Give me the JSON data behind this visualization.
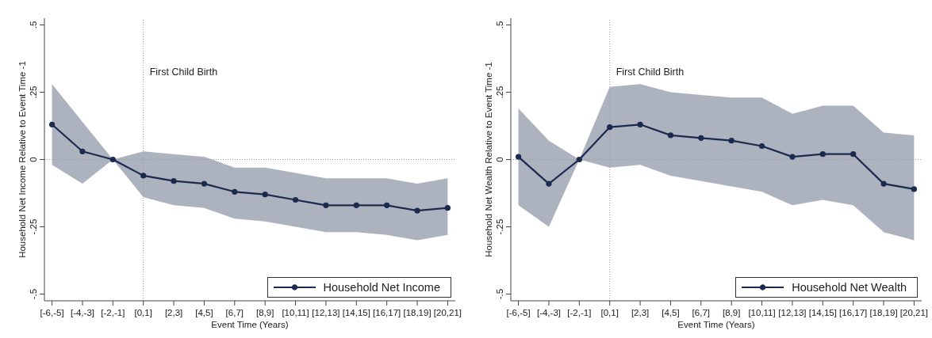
{
  "chart_data": [
    {
      "type": "line",
      "xlabel": "Event Time (Years)",
      "ylabel": "Household Net Income Relative to Event Time -1",
      "categories": [
        "[-6,-5]",
        "[-4,-3]",
        "[-2,-1]",
        "[0,1]",
        "[2,3]",
        "[4,5]",
        "[6,7]",
        "[8,9]",
        "[10,11]",
        "[12,13]",
        "[14,15]",
        "[16,17]",
        "[18,19]",
        "[20,21]"
      ],
      "ylim": [
        -0.525,
        0.525
      ],
      "yticks": [
        {
          "value": -0.5,
          "label": "-.5"
        },
        {
          "value": -0.25,
          "label": "-.25"
        },
        0,
        {
          "value": 0.25,
          "label": ".25"
        },
        {
          "value": 0.5,
          "label": ".5"
        }
      ],
      "series": [
        {
          "name": "Household Net Income",
          "color": "#1b2a4e",
          "values": [
            0.13,
            0.03,
            0,
            -0.06,
            -0.08,
            -0.09,
            -0.12,
            -0.13,
            -0.15,
            -0.17,
            -0.17,
            -0.17,
            -0.19,
            -0.18
          ],
          "lower": [
            -0.02,
            -0.09,
            0,
            -0.14,
            -0.17,
            -0.18,
            -0.22,
            -0.23,
            -0.25,
            -0.27,
            -0.27,
            -0.28,
            -0.3,
            -0.28
          ],
          "upper": [
            0.28,
            0.14,
            0,
            0.03,
            0.02,
            0.01,
            -0.03,
            -0.03,
            -0.05,
            -0.07,
            -0.07,
            -0.07,
            -0.09,
            -0.07
          ]
        }
      ],
      "ref_lines": [
        {
          "axis": "x",
          "value": "[0,1]",
          "label": "First Child Birth",
          "color": "#999999",
          "line_style": "dotted"
        },
        {
          "axis": "y",
          "value": 0,
          "color": "#999999",
          "line_style": "dotted"
        }
      ],
      "legend": "bottom right",
      "marker": "circle"
    },
    {
      "type": "line",
      "xlabel": "Event Time (Years)",
      "ylabel": "Household Net Wealth Relative to Event Time -1",
      "categories": [
        "[-6,-5]",
        "[-4,-3]",
        "[-2,-1]",
        "[0,1]",
        "[2,3]",
        "[4,5]",
        "[6,7]",
        "[8,9]",
        "[10,11]",
        "[12,13]",
        "[14,15]",
        "[16,17]",
        "[18,19]",
        "[20,21]"
      ],
      "ylim": [
        -0.525,
        0.525
      ],
      "yticks": [
        {
          "value": -0.5,
          "label": "-.5"
        },
        {
          "value": -0.25,
          "label": "-.25"
        },
        0,
        {
          "value": 0.25,
          "label": ".25"
        },
        {
          "value": 0.5,
          "label": ".5"
        }
      ],
      "series": [
        {
          "name": "Household Net Wealth",
          "color": "#1b2a4e",
          "values": [
            0.01,
            -0.09,
            0,
            0.12,
            0.13,
            0.09,
            0.08,
            0.07,
            0.05,
            0.01,
            0.02,
            0.02,
            -0.09,
            -0.11
          ],
          "lower": [
            -0.17,
            -0.25,
            0,
            -0.03,
            -0.02,
            -0.06,
            -0.08,
            -0.1,
            -0.12,
            -0.17,
            -0.15,
            -0.17,
            -0.27,
            -0.3
          ],
          "upper": [
            0.19,
            0.07,
            0,
            0.27,
            0.28,
            0.25,
            0.24,
            0.23,
            0.23,
            0.17,
            0.2,
            0.2,
            0.1,
            0.09
          ]
        }
      ],
      "ref_lines": [
        {
          "axis": "x",
          "value": "[0,1]",
          "label": "First Child Birth",
          "color": "#999999",
          "line_style": "dotted"
        },
        {
          "axis": "y",
          "value": 0,
          "color": "#999999",
          "line_style": "dotted"
        }
      ],
      "legend": "bottom right",
      "marker": "circle"
    }
  ]
}
